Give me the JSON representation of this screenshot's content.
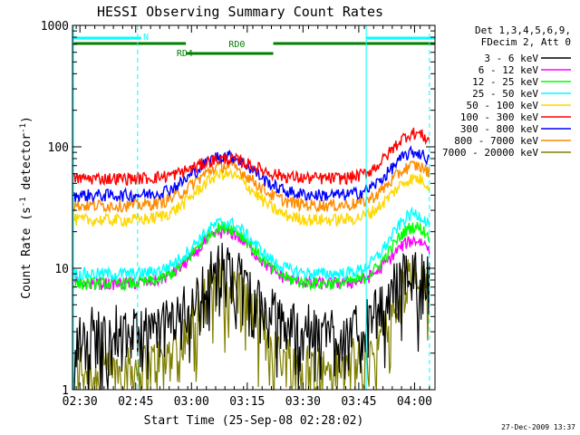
{
  "chart_data": {
    "type": "line",
    "title": "HESSI Observing Summary Count Rates",
    "xlabel": "Start Time (25-Sep-08 02:28:02)",
    "ylabel_main": "Count Rate (s",
    "ylabel_sup1": "-1",
    "ylabel_mid": " detector",
    "ylabel_sup2": "-1",
    "ylabel_end": ")",
    "yscale": "log",
    "ylim": [
      1,
      1000
    ],
    "xlim_minutes": [
      -2,
      95.5
    ],
    "x_tick_labels": [
      "02:30",
      "02:45",
      "03:00",
      "03:15",
      "03:30",
      "03:45",
      "04:00"
    ],
    "x_tick_minutes": [
      0,
      15,
      30,
      45,
      60,
      75,
      90
    ],
    "y_tick_labels": [
      "1",
      "10",
      "100",
      "1000"
    ],
    "y_tick_values": [
      1,
      10,
      100,
      1000
    ],
    "legend_title_1": "Det 1,3,4,5,6,9,",
    "legend_title_2": "FDecim 2, Att 0",
    "legend_placement": "right",
    "timestamp": "27-Dec-2009 13:37",
    "bars": [
      {
        "label": "N",
        "color": "#00ffff",
        "segments": [
          [
            -2,
            16.5
          ],
          [
            77,
            95.5
          ]
        ]
      },
      {
        "label": "RD0",
        "color": "#008000",
        "segments": [
          [
            -2,
            28.5
          ],
          [
            52,
            95.5
          ]
        ]
      },
      {
        "label": "RD4",
        "color": "#008000",
        "segments": [
          [
            28.5,
            52
          ]
        ]
      }
    ],
    "annotations": {
      "solid_lines_minutes": [
        -2,
        77
      ],
      "dashed_lines_minutes": [
        15.5,
        94
      ]
    },
    "series": [
      {
        "name": "3 - 6 keV",
        "color": "#000000",
        "night": 3,
        "peak1": 10,
        "peak2": 10
      },
      {
        "name": "6 - 12 keV",
        "color": "#ff00ff",
        "night": 7.5,
        "peak1": 20,
        "peak2": 17
      },
      {
        "name": "12 - 25 keV",
        "color": "#00ff00",
        "night": 7.5,
        "peak1": 22,
        "peak2": 22
      },
      {
        "name": "25 - 50 keV",
        "color": "#00ffff",
        "night": 9,
        "peak1": 24,
        "peak2": 28
      },
      {
        "name": "50 - 100 keV",
        "color": "#ffd700",
        "night": 25,
        "peak1": 60,
        "peak2": 55
      },
      {
        "name": "100 - 300 keV",
        "color": "#ff0000",
        "night": 55,
        "peak1": 80,
        "peak2": 130
      },
      {
        "name": "300 - 800 keV",
        "color": "#0000ff",
        "night": 40,
        "peak1": 85,
        "peak2": 90
      },
      {
        "name": "800 - 7000 keV",
        "color": "#ff8c00",
        "night": 33,
        "peak1": 70,
        "peak2": 70
      },
      {
        "name": "7000 - 20000 keV",
        "color": "#808000",
        "night": 1.5,
        "peak1": 8,
        "peak2": 8
      }
    ]
  }
}
